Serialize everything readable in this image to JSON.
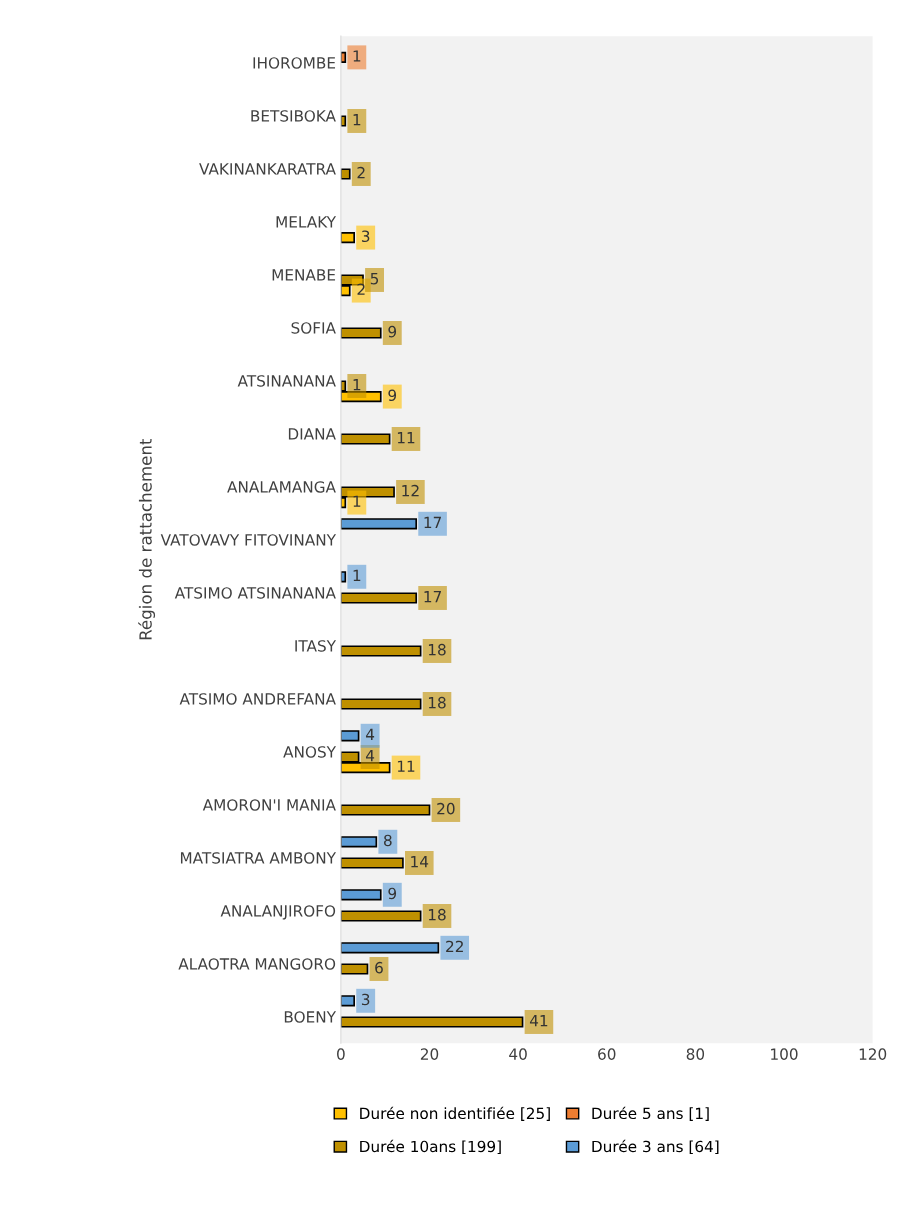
{
  "chart_data": {
    "type": "bar",
    "orientation": "horizontal",
    "ylabel": "Région de rattachement",
    "categories": [
      "IHOROMBE",
      "BETSIBOKA",
      "VAKINANKARATRA",
      "MELAKY",
      "MENABE",
      "SOFIA",
      "ATSINANANA",
      "DIANA",
      "ANALAMANGA",
      "VATOVAVY FITOVINANY",
      "ATSIMO ATSINANANA",
      "ITASY",
      "ATSIMO ANDREFANA",
      "ANOSY",
      "AMORON'I MANIA",
      "MATSIATRA AMBONY",
      "ANALANJIROFO",
      "ALAOTRA MANGORO",
      "BOENY"
    ],
    "series": [
      {
        "name": "Durée non identifiée [25]",
        "color": "#ffc000",
        "values": [
          null,
          null,
          null,
          3,
          2,
          null,
          9,
          null,
          1,
          null,
          null,
          null,
          null,
          11,
          null,
          null,
          null,
          null,
          null
        ]
      },
      {
        "name": "Durée 10ans [199]",
        "color": "#bf9000",
        "values": [
          null,
          1,
          2,
          null,
          5,
          9,
          1,
          11,
          12,
          null,
          17,
          18,
          18,
          4,
          20,
          14,
          18,
          6,
          41
        ]
      },
      {
        "name": "Durée 5 ans [1]",
        "color": "#ed7d31",
        "values": [
          1,
          null,
          null,
          null,
          null,
          null,
          null,
          null,
          null,
          null,
          null,
          null,
          null,
          null,
          null,
          null,
          null,
          null,
          null
        ]
      },
      {
        "name": "Durée 3 ans [64]",
        "color": "#5b9bd5",
        "values": [
          null,
          null,
          null,
          null,
          null,
          null,
          null,
          null,
          null,
          17,
          1,
          null,
          null,
          4,
          null,
          8,
          9,
          22,
          3
        ]
      }
    ],
    "xlim": [
      0,
      120
    ],
    "xticks": [
      0,
      20,
      40,
      60,
      80,
      100,
      120
    ],
    "grid": false,
    "legend": "bottom",
    "data_labels": true
  }
}
